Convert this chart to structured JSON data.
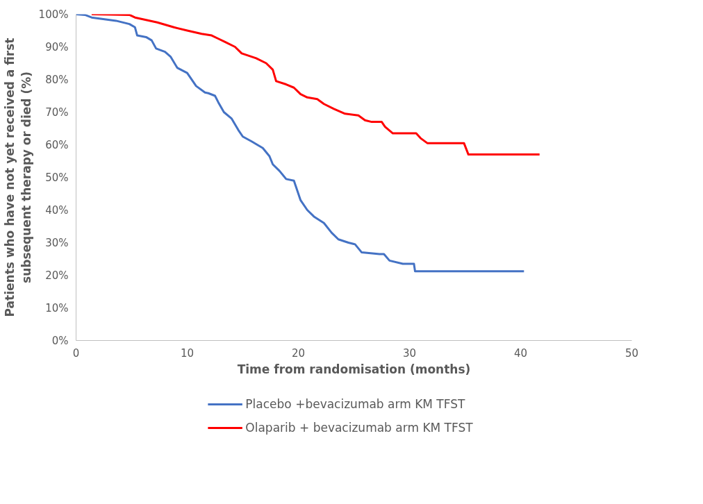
{
  "chart_data": {
    "type": "line",
    "xlabel": "Time from randomisation (months)",
    "ylabel": "Patients who have not yet received a first\nsubsequent therapy or died (%)",
    "xlim": [
      0,
      50
    ],
    "xticks": [
      0,
      10,
      20,
      30,
      40,
      50
    ],
    "ylim": [
      0,
      100
    ],
    "yticks": [
      {
        "value": 0,
        "label": "0%"
      },
      {
        "value": 10,
        "label": "10%"
      },
      {
        "value": 20,
        "label": "20%"
      },
      {
        "value": 30,
        "label": "30%"
      },
      {
        "value": 40,
        "label": "40%"
      },
      {
        "value": 50,
        "label": "50%"
      },
      {
        "value": 60,
        "label": "60%"
      },
      {
        "value": 70,
        "label": "70%"
      },
      {
        "value": 80,
        "label": "80%"
      },
      {
        "value": 90,
        "label": "90%"
      },
      {
        "value": 100,
        "label": "100%"
      }
    ],
    "grid": false,
    "legend": "bottom",
    "marker": "none",
    "line_style": "solid",
    "series": [
      {
        "name": "Placebo +bevacizumab arm KM TFST",
        "color": "#4472c4",
        "x": [
          0,
          0.8,
          1.4,
          3.6,
          4.8,
          5.3,
          5.5,
          6.3,
          6.8,
          7.2,
          8,
          8.5,
          9.1,
          10,
          10.8,
          11.6,
          11.9,
          12.5,
          12.8,
          13.3,
          14,
          14.6,
          15,
          15.8,
          16.8,
          17.4,
          17.7,
          18.3,
          18.9,
          19.6,
          20.2,
          20.8,
          21.4,
          22.3,
          23,
          23.6,
          24.5,
          25.1,
          25.7,
          27.3,
          27.7,
          28.2,
          29.4,
          30.4,
          30.5,
          40.3
        ],
        "values": [
          100,
          99.8,
          99,
          98,
          97,
          96,
          93.5,
          93,
          92,
          89.5,
          88.5,
          87,
          83.6,
          82,
          78,
          76,
          75.8,
          75,
          73,
          70,
          68,
          64.5,
          62.5,
          61,
          59,
          56.5,
          54,
          52,
          49.5,
          49,
          43,
          40,
          38,
          36,
          33,
          31,
          30,
          29.5,
          27,
          26.5,
          26.5,
          24.5,
          23.5,
          23.5,
          21.2,
          21.2
        ]
      },
      {
        "name": "Olaparib + bevacizumab arm KM TFST",
        "color": "#ff0000",
        "x": [
          1.4,
          4.8,
          5.3,
          7.3,
          8.8,
          10,
          11.3,
          12.2,
          12.8,
          13.4,
          14.3,
          14.9,
          16.2,
          17.1,
          17.7,
          18,
          18.9,
          19.6,
          20.2,
          20.8,
          21.7,
          22.3,
          23.2,
          24.2,
          25.4,
          26,
          26.6,
          27.5,
          27.8,
          28.5,
          30.6,
          31,
          31.6,
          34.9,
          35.3,
          41.7
        ],
        "values": [
          100,
          99.8,
          99,
          97.5,
          96,
          95,
          94,
          93.5,
          92.5,
          91.5,
          90,
          88,
          86.5,
          85,
          83,
          79.5,
          78.5,
          77.5,
          75.5,
          74.5,
          74,
          72.5,
          71,
          69.5,
          69,
          67.5,
          67,
          67,
          65.5,
          63.5,
          63.5,
          62,
          60.5,
          60.5,
          57,
          57
        ]
      }
    ]
  }
}
